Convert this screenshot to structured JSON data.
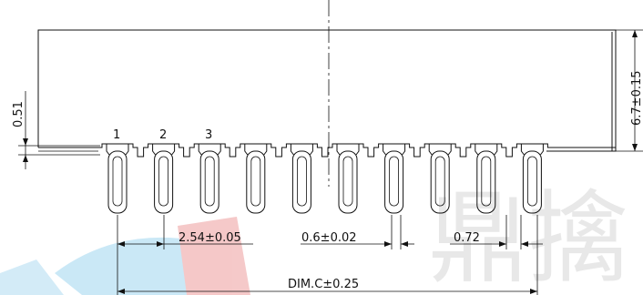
{
  "pins": {
    "count": 10,
    "labels": [
      "1",
      "2",
      "3"
    ]
  },
  "dimensions": {
    "pitch": "2.54±0.05",
    "pin_width": "0.6±0.02",
    "pin_spacing": "0.72",
    "overall": "DIM.C±0.25",
    "offset": "0.51",
    "height": "6.7±0.15"
  },
  "watermark": {
    "text": "鼎擒",
    "colors": [
      "#e8e8e8",
      "#2fa6e0",
      "#e83a3a"
    ]
  }
}
